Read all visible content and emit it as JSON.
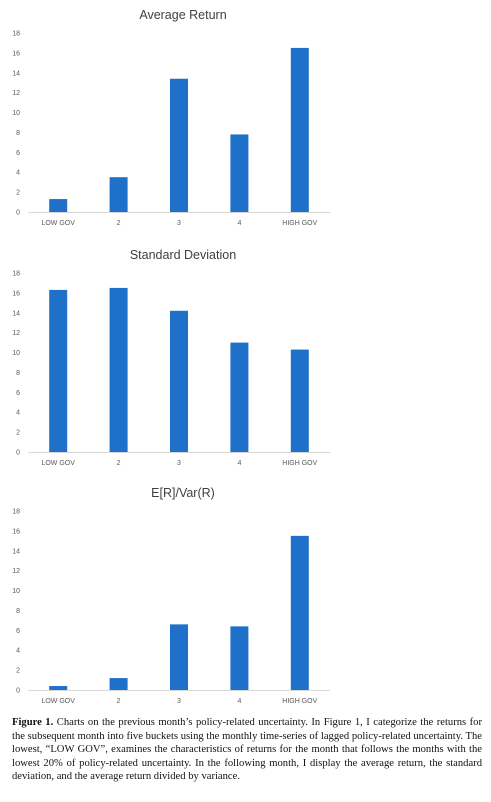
{
  "chart_data": [
    {
      "type": "bar",
      "title": "Average Return",
      "categories": [
        "LOW GOV",
        "2",
        "3",
        "4",
        "HIGH GOV"
      ],
      "values": [
        1.3,
        3.5,
        13.4,
        7.8,
        16.5
      ],
      "ylim": [
        0,
        18
      ],
      "yticks": [
        0,
        2,
        4,
        6,
        8,
        10,
        12,
        14,
        16,
        18
      ],
      "color": "#1f70c8",
      "grid": false
    },
    {
      "type": "bar",
      "title": "Standard Deviation",
      "categories": [
        "LOW GOV",
        "2",
        "3",
        "4",
        "HIGH GOV"
      ],
      "values": [
        16.3,
        16.5,
        14.2,
        11.0,
        10.3
      ],
      "ylim": [
        0,
        18
      ],
      "yticks": [
        0,
        2,
        4,
        6,
        8,
        10,
        12,
        14,
        16,
        18
      ],
      "color": "#1f70c8",
      "grid": false
    },
    {
      "type": "bar",
      "title": "E[R]/Var(R)",
      "categories": [
        "LOW GOV",
        "2",
        "3",
        "4",
        "HIGH GOV"
      ],
      "values": [
        0.4,
        1.2,
        6.6,
        6.4,
        15.5
      ],
      "ylim": [
        0,
        18
      ],
      "yticks": [
        0,
        2,
        4,
        6,
        8,
        10,
        12,
        14,
        16,
        18
      ],
      "color": "#1f70c8",
      "grid": false
    }
  ],
  "caption": {
    "label": "Figure 1.",
    "text": "Charts on the previous month’s policy-related uncertainty. In Figure 1, I categorize the returns for the subsequent month into five buckets using the monthly time-series of lagged policy-related uncertainty. The lowest, “LOW GOV”, examines the characteristics of returns for the month that follows the months with the lowest 20% of policy-related uncertainty. In the following month, I display the average return, the standard deviation, and the average return divided by variance."
  }
}
